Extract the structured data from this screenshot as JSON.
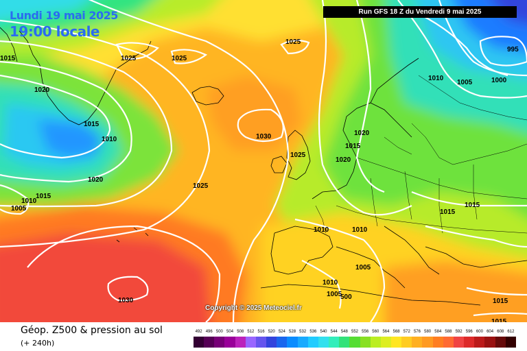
{
  "header": {
    "date_line": "Lundi 19 mai 2025",
    "time_line": "19:00 locale",
    "run_banner": "Run GFS 18 Z du Vendredi 9 mai 2025"
  },
  "map": {
    "copyright": "Copyright © 2025 Meteociel.fr",
    "isobar_labels": [
      "1020",
      "1015",
      "1025",
      "1025",
      "1025",
      "995",
      "1010",
      "1005",
      "1000",
      "1020",
      "1015",
      "1010",
      "1030",
      "1015",
      "1020",
      "1025",
      "1025",
      "1020",
      "1015",
      "1010",
      "1005",
      "1030",
      "1010",
      "1015",
      "1015",
      "1010",
      "1005",
      "1010",
      "1005",
      "500",
      "1015",
      "1015"
    ]
  },
  "footer": {
    "title": "Géop. Z500 & pression au sol",
    "step": "(+ 240h)"
  },
  "legend": {
    "labels": [
      "492",
      "496",
      "500",
      "504",
      "508",
      "512",
      "516",
      "520",
      "524",
      "528",
      "532",
      "536",
      "540",
      "544",
      "548",
      "552",
      "556",
      "560",
      "564",
      "568",
      "572",
      "576",
      "580",
      "584",
      "588",
      "592",
      "596",
      "600",
      "604",
      "608",
      "612"
    ],
    "colors": [
      "#330033",
      "#550055",
      "#770077",
      "#990099",
      "#bb22bb",
      "#9966ff",
      "#6655ee",
      "#3344dd",
      "#1a66ee",
      "#0a8cff",
      "#19aaff",
      "#22ccff",
      "#33e0ee",
      "#33eebb",
      "#33e27a",
      "#55dd33",
      "#88e022",
      "#bbee22",
      "#ddee22",
      "#ffe622",
      "#ffcc22",
      "#ffb022",
      "#ff9a22",
      "#ff7e22",
      "#ff6a33",
      "#f04444",
      "#dd2a2a",
      "#bb1a1a",
      "#991111",
      "#660a0a",
      "#330000"
    ]
  }
}
